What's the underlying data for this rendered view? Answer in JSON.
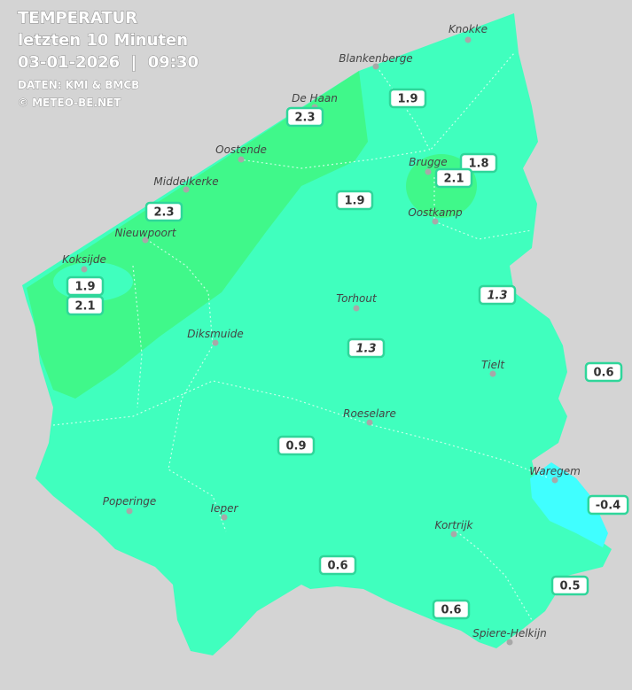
{
  "header": {
    "title": "TEMPERATUR",
    "subtitle": "letzten 10 Minuten",
    "datetime": "03-01-2026  |  09:30",
    "source": "DATEN: KMI & BMCB",
    "copyright": "© METEO-BE.NET"
  },
  "cities": [
    "Knokke",
    "Blankenberge",
    "De Haan",
    "Oostende",
    "Middelkerke",
    "Nieuwpoort",
    "Koksijde",
    "Brugge",
    "Oostkamp",
    "Torhout",
    "Diksmuide",
    "Tielt",
    "Roeselare",
    "Waregem",
    "Poperinge",
    "Ieper",
    "Kortrijk",
    "Spiere-Helkijn"
  ],
  "stations": [
    1.9,
    2.3,
    1.8,
    2.1,
    1.9,
    2.3,
    1.9,
    2.1,
    1.3,
    1.3,
    0.6,
    0.9,
    -0.4,
    0.6,
    0.5,
    0.6
  ]
}
